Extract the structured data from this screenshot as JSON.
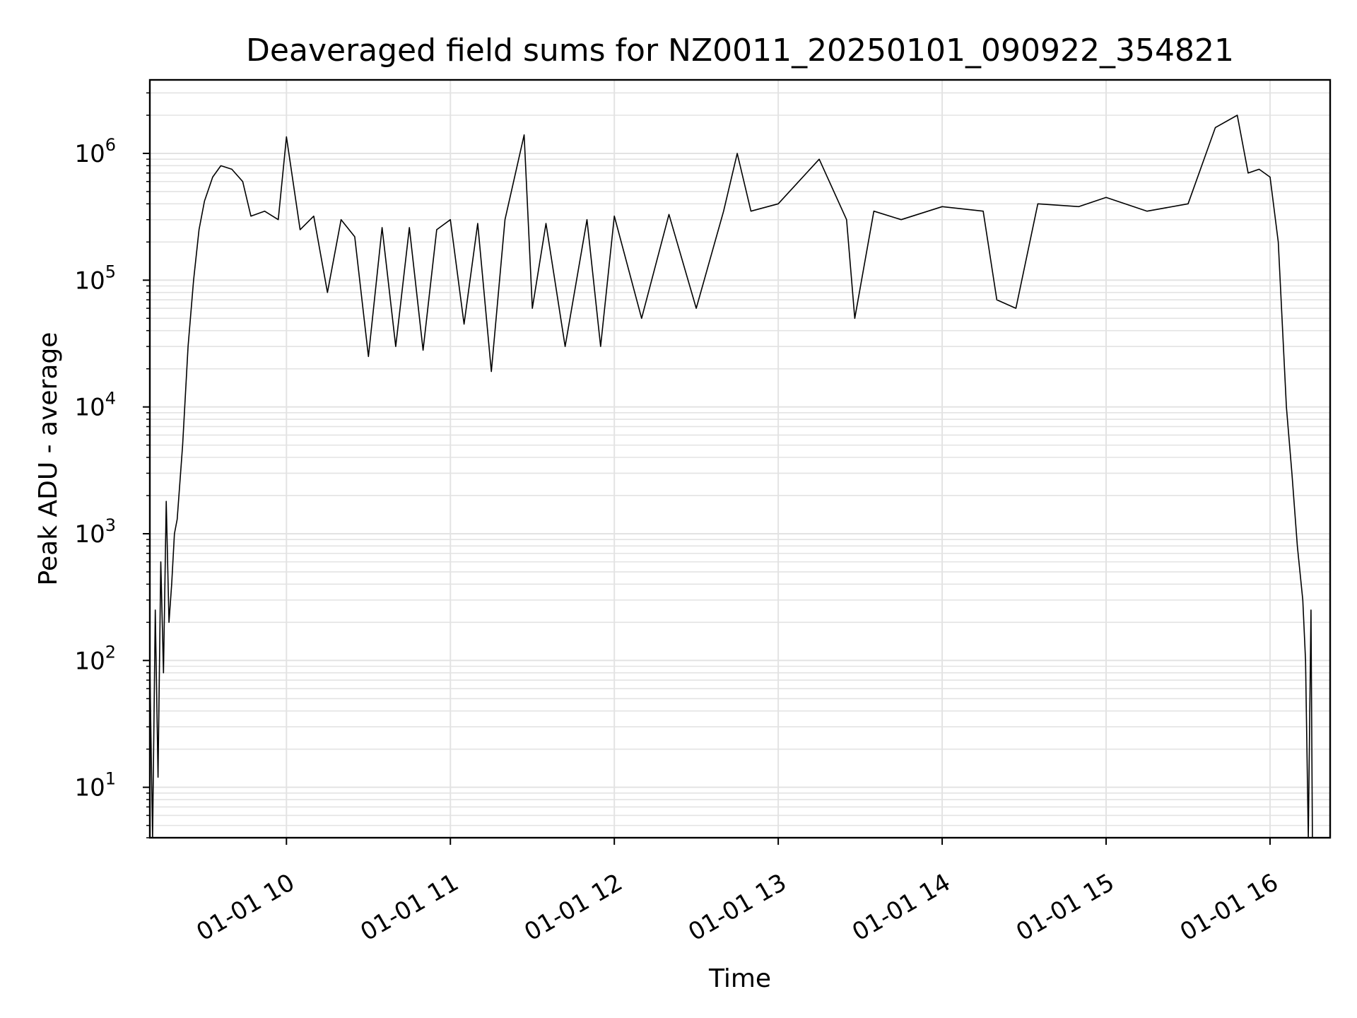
{
  "chart_data": {
    "type": "line",
    "title": "Deaveraged field sums for NZ0011_20250101_090922_354821",
    "xlabel": "Time",
    "ylabel": "Peak ADU - average",
    "y_scale": "log",
    "ylim": [
      4,
      3800000
    ],
    "xlim": [
      "2025-01-01T09:10",
      "2025-01-01T16:22"
    ],
    "grid": true,
    "x_ticks": [
      {
        "value": "2025-01-01T10:00",
        "label": "01-01 10"
      },
      {
        "value": "2025-01-01T11:00",
        "label": "01-01 11"
      },
      {
        "value": "2025-01-01T12:00",
        "label": "01-01 12"
      },
      {
        "value": "2025-01-01T13:00",
        "label": "01-01 13"
      },
      {
        "value": "2025-01-01T14:00",
        "label": "01-01 14"
      },
      {
        "value": "2025-01-01T15:00",
        "label": "01-01 15"
      },
      {
        "value": "2025-01-01T16:00",
        "label": "01-01 16"
      }
    ],
    "y_ticks": [
      {
        "value": 10,
        "base": "10",
        "exp": "1"
      },
      {
        "value": 100,
        "base": "10",
        "exp": "2"
      },
      {
        "value": 1000,
        "base": "10",
        "exp": "3"
      },
      {
        "value": 10000,
        "base": "10",
        "exp": "4"
      },
      {
        "value": 100000,
        "base": "10",
        "exp": "5"
      },
      {
        "value": 1000000,
        "base": "10",
        "exp": "6"
      }
    ],
    "series": [
      {
        "color": "#000000",
        "points": [
          [
            "2025-01-01T09:10",
            90
          ],
          [
            "2025-01-01T09:11",
            4
          ],
          [
            "2025-01-01T09:12",
            250
          ],
          [
            "2025-01-01T09:13",
            12
          ],
          [
            "2025-01-01T09:14",
            600
          ],
          [
            "2025-01-01T09:15",
            80
          ],
          [
            "2025-01-01T09:16",
            1800
          ],
          [
            "2025-01-01T09:17",
            200
          ],
          [
            "2025-01-01T09:18",
            400
          ],
          [
            "2025-01-01T09:19",
            1000
          ],
          [
            "2025-01-01T09:20",
            1300
          ],
          [
            "2025-01-01T09:22",
            5000
          ],
          [
            "2025-01-01T09:24",
            30000
          ],
          [
            "2025-01-01T09:26",
            100000
          ],
          [
            "2025-01-01T09:28",
            250000
          ],
          [
            "2025-01-01T09:30",
            420000
          ],
          [
            "2025-01-01T09:33",
            650000
          ],
          [
            "2025-01-01T09:36",
            800000
          ],
          [
            "2025-01-01T09:40",
            750000
          ],
          [
            "2025-01-01T09:44",
            600000
          ],
          [
            "2025-01-01T09:47",
            320000
          ],
          [
            "2025-01-01T09:52",
            350000
          ],
          [
            "2025-01-01T09:57",
            300000
          ],
          [
            "2025-01-01T10:00",
            1350000
          ],
          [
            "2025-01-01T10:05",
            250000
          ],
          [
            "2025-01-01T10:10",
            320000
          ],
          [
            "2025-01-01T10:15",
            80000
          ],
          [
            "2025-01-01T10:20",
            300000
          ],
          [
            "2025-01-01T10:25",
            220000
          ],
          [
            "2025-01-01T10:30",
            25000
          ],
          [
            "2025-01-01T10:35",
            260000
          ],
          [
            "2025-01-01T10:40",
            30000
          ],
          [
            "2025-01-01T10:45",
            260000
          ],
          [
            "2025-01-01T10:50",
            28000
          ],
          [
            "2025-01-01T10:55",
            250000
          ],
          [
            "2025-01-01T11:00",
            300000
          ],
          [
            "2025-01-01T11:05",
            45000
          ],
          [
            "2025-01-01T11:10",
            280000
          ],
          [
            "2025-01-01T11:15",
            19000
          ],
          [
            "2025-01-01T11:20",
            300000
          ],
          [
            "2025-01-01T11:27",
            1400000
          ],
          [
            "2025-01-01T11:30",
            60000
          ],
          [
            "2025-01-01T11:35",
            280000
          ],
          [
            "2025-01-01T11:42",
            30000
          ],
          [
            "2025-01-01T11:50",
            300000
          ],
          [
            "2025-01-01T11:55",
            30000
          ],
          [
            "2025-01-01T12:00",
            320000
          ],
          [
            "2025-01-01T12:10",
            50000
          ],
          [
            "2025-01-01T12:20",
            330000
          ],
          [
            "2025-01-01T12:30",
            60000
          ],
          [
            "2025-01-01T12:40",
            350000
          ],
          [
            "2025-01-01T12:45",
            1000000
          ],
          [
            "2025-01-01T12:50",
            350000
          ],
          [
            "2025-01-01T13:00",
            400000
          ],
          [
            "2025-01-01T13:15",
            900000
          ],
          [
            "2025-01-01T13:25",
            300000
          ],
          [
            "2025-01-01T13:28",
            50000
          ],
          [
            "2025-01-01T13:35",
            350000
          ],
          [
            "2025-01-01T13:45",
            300000
          ],
          [
            "2025-01-01T14:00",
            380000
          ],
          [
            "2025-01-01T14:15",
            350000
          ],
          [
            "2025-01-01T14:20",
            70000
          ],
          [
            "2025-01-01T14:27",
            60000
          ],
          [
            "2025-01-01T14:35",
            400000
          ],
          [
            "2025-01-01T14:50",
            380000
          ],
          [
            "2025-01-01T15:00",
            450000
          ],
          [
            "2025-01-01T15:15",
            350000
          ],
          [
            "2025-01-01T15:30",
            400000
          ],
          [
            "2025-01-01T15:40",
            1600000
          ],
          [
            "2025-01-01T15:48",
            2000000
          ],
          [
            "2025-01-01T15:52",
            700000
          ],
          [
            "2025-01-01T15:56",
            750000
          ],
          [
            "2025-01-01T16:00",
            650000
          ],
          [
            "2025-01-01T16:03",
            200000
          ],
          [
            "2025-01-01T16:06",
            10000
          ],
          [
            "2025-01-01T16:08",
            3000
          ],
          [
            "2025-01-01T16:10",
            800
          ],
          [
            "2025-01-01T16:12",
            300
          ],
          [
            "2025-01-01T16:13",
            100
          ],
          [
            "2025-01-01T16:14",
            4
          ],
          [
            "2025-01-01T16:15",
            250
          ],
          [
            "2025-01-01T16:15:30",
            4
          ]
        ]
      }
    ]
  }
}
